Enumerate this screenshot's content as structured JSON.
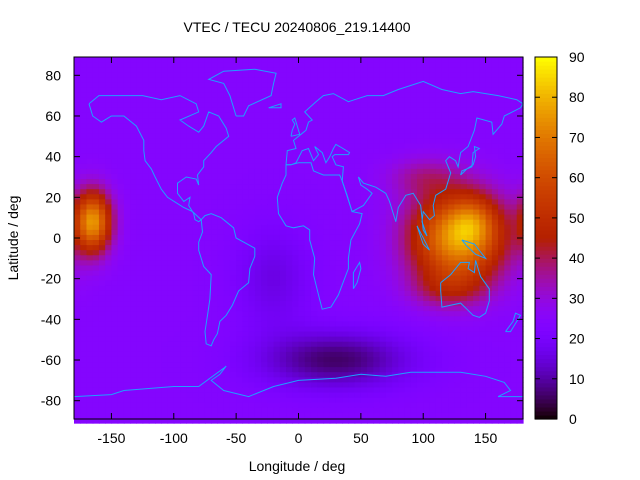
{
  "chart_data": {
    "type": "heatmap",
    "title": "VTEC / TECU 20240806_219.14400",
    "xlabel": "Longitude / deg",
    "ylabel": "Latitude / deg",
    "xlim": [
      -180,
      180
    ],
    "ylim": [
      -89,
      89
    ],
    "clim": [
      0,
      90
    ],
    "colormap": "gnuplot pm3d (black-purple-red-orange-yellow)",
    "x_ticks": [
      -150,
      -100,
      -50,
      0,
      50,
      100,
      150
    ],
    "y_ticks": [
      -80,
      -60,
      -40,
      -20,
      0,
      20,
      40,
      60,
      80
    ],
    "colorbar_ticks": [
      0,
      10,
      20,
      30,
      40,
      50,
      60,
      70,
      80,
      90
    ],
    "grid": false,
    "legend": "none",
    "background_vtec_model": {
      "base": 24,
      "features": [
        {
          "lon": 128,
          "lat": 0,
          "peak": 52,
          "lon_width": 38,
          "lat_width": 22
        },
        {
          "lon": 140,
          "lat": 8,
          "peak": 14,
          "lon_width": 18,
          "lat_width": 12
        },
        {
          "lon": -165,
          "lat": 8,
          "peak": 50,
          "lon_width": 15,
          "lat_width": 15
        },
        {
          "lon": 100,
          "lat": 30,
          "peak": 10,
          "lon_width": 30,
          "lat_width": 10
        },
        {
          "lon": 120,
          "lat": -25,
          "peak": 12,
          "lon_width": 30,
          "lat_width": 10
        },
        {
          "lon": 30,
          "lat": -60,
          "peak": -18,
          "lon_width": 60,
          "lat_width": 14
        },
        {
          "lon": -20,
          "lat": -20,
          "peak": -8,
          "lon_width": 30,
          "lat_width": 25
        }
      ]
    }
  }
}
